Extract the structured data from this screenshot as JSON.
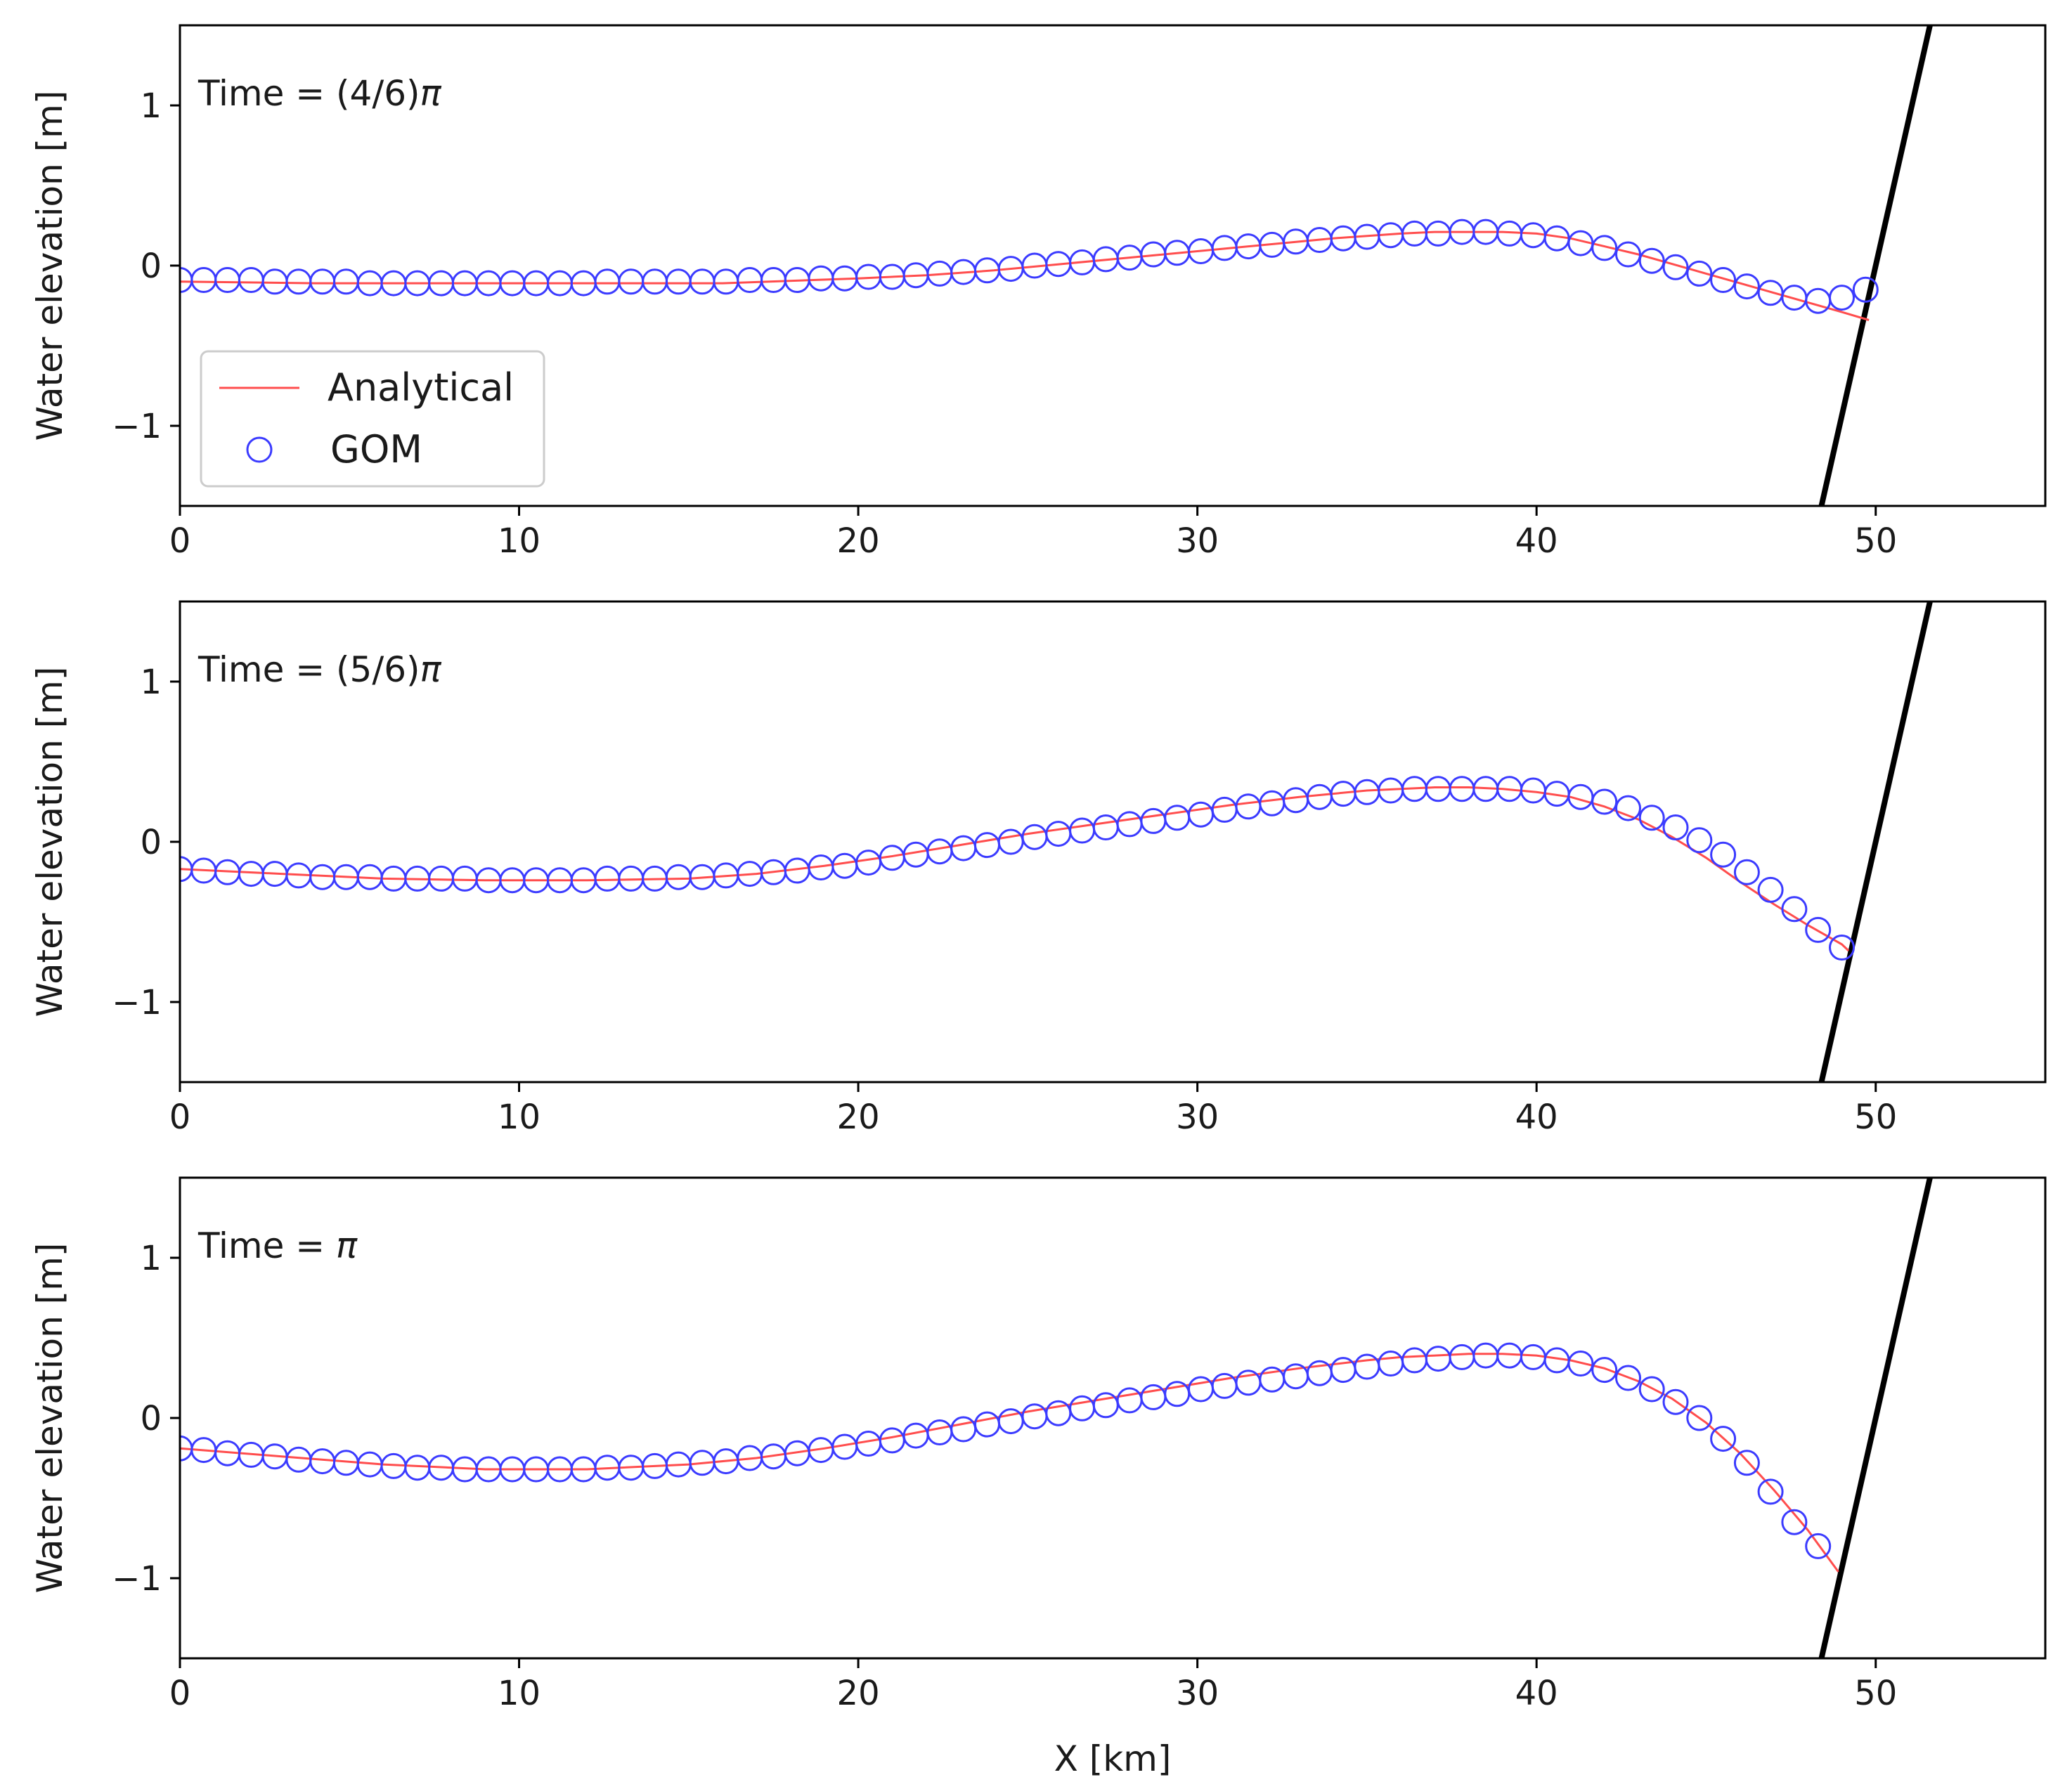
{
  "colors": {
    "analytical": "#ff4d4d",
    "gom": "#3b3bff",
    "bathymetry": "#000000",
    "axes": "#000000",
    "background": "#ffffff"
  },
  "legend": {
    "position": "lower-left of top panel",
    "entries": [
      {
        "label": "Analytical",
        "marker": "line"
      },
      {
        "label": "GOM",
        "marker": "circle"
      }
    ]
  },
  "chart_data": [
    {
      "type": "line+scatter",
      "annotation": "Time = (4/6)π",
      "annotation_prefix": "Time = (4/6)",
      "annotation_symbol": "π",
      "xlabel": "",
      "ylabel": "Water elevation [m]",
      "xlim": [
        0,
        55
      ],
      "ylim": [
        -1.5,
        1.5
      ],
      "xticks": [
        0,
        10,
        20,
        30,
        40,
        50
      ],
      "xtick_labels": [
        "0",
        "10",
        "20",
        "30",
        "40",
        "50"
      ],
      "yticks": [
        1,
        0,
        -1
      ],
      "ytick_labels": [
        "1",
        "0",
        "−1"
      ],
      "shoreline": [
        [
          48.4,
          -1.5
        ],
        [
          51.6,
          1.5
        ]
      ],
      "series": [
        {
          "name": "Analytical",
          "x": [
            0,
            4,
            8,
            12,
            16,
            20,
            22,
            24,
            26,
            28,
            30,
            32,
            34,
            36,
            37,
            38,
            39,
            40,
            41,
            42,
            43,
            44,
            45,
            46,
            47,
            48,
            49,
            49.8
          ],
          "y": [
            -0.1,
            -0.11,
            -0.11,
            -0.11,
            -0.11,
            -0.08,
            -0.06,
            -0.03,
            0.01,
            0.05,
            0.09,
            0.13,
            0.17,
            0.2,
            0.21,
            0.21,
            0.21,
            0.2,
            0.17,
            0.12,
            0.07,
            0.01,
            -0.05,
            -0.11,
            -0.17,
            -0.23,
            -0.29,
            -0.34
          ]
        },
        {
          "name": "GOM",
          "x": [
            0,
            0.7,
            1.4,
            2.1,
            2.8,
            3.5,
            4.2,
            4.9,
            5.6,
            6.3,
            7,
            7.7,
            8.4,
            9.1,
            9.8,
            10.5,
            11.2,
            11.9,
            12.6,
            13.3,
            14,
            14.7,
            15.4,
            16.1,
            16.8,
            17.5,
            18.2,
            18.9,
            19.6,
            20.3,
            21,
            21.7,
            22.4,
            23.1,
            23.8,
            24.5,
            25.2,
            25.9,
            26.6,
            27.3,
            28,
            28.7,
            29.4,
            30.1,
            30.8,
            31.5,
            32.2,
            32.9,
            33.6,
            34.3,
            35,
            35.7,
            36.4,
            37.1,
            37.8,
            38.5,
            39.2,
            39.9,
            40.6,
            41.3,
            42,
            42.7,
            43.4,
            44.1,
            44.8,
            45.5,
            46.2,
            46.9,
            47.6,
            48.3,
            49,
            49.7
          ],
          "y": [
            -0.09,
            -0.09,
            -0.09,
            -0.09,
            -0.1,
            -0.1,
            -0.1,
            -0.1,
            -0.11,
            -0.11,
            -0.11,
            -0.11,
            -0.11,
            -0.11,
            -0.11,
            -0.11,
            -0.11,
            -0.11,
            -0.1,
            -0.1,
            -0.1,
            -0.1,
            -0.1,
            -0.1,
            -0.09,
            -0.09,
            -0.09,
            -0.08,
            -0.08,
            -0.07,
            -0.07,
            -0.06,
            -0.05,
            -0.04,
            -0.03,
            -0.02,
            0.0,
            0.01,
            0.02,
            0.04,
            0.05,
            0.07,
            0.08,
            0.09,
            0.11,
            0.12,
            0.13,
            0.15,
            0.16,
            0.17,
            0.18,
            0.19,
            0.2,
            0.2,
            0.21,
            0.21,
            0.2,
            0.19,
            0.17,
            0.14,
            0.11,
            0.07,
            0.03,
            -0.01,
            -0.05,
            -0.09,
            -0.13,
            -0.17,
            -0.2,
            -0.22,
            -0.2,
            -0.15
          ]
        }
      ]
    },
    {
      "type": "line+scatter",
      "annotation": "Time = (5/6)π",
      "annotation_prefix": "Time = (5/6)",
      "annotation_symbol": "π",
      "xlabel": "",
      "ylabel": "Water elevation [m]",
      "xlim": [
        0,
        55
      ],
      "ylim": [
        -1.5,
        1.5
      ],
      "xticks": [
        0,
        10,
        20,
        30,
        40,
        50
      ],
      "xtick_labels": [
        "0",
        "10",
        "20",
        "30",
        "40",
        "50"
      ],
      "yticks": [
        1,
        0,
        -1
      ],
      "ytick_labels": [
        "1",
        "0",
        "−1"
      ],
      "shoreline": [
        [
          48.4,
          -1.5
        ],
        [
          51.6,
          1.5
        ]
      ],
      "series": [
        {
          "name": "Analytical",
          "x": [
            0,
            3,
            6,
            9,
            12,
            15,
            17,
            19,
            21,
            23,
            25,
            27,
            29,
            31,
            33,
            35,
            36,
            37,
            38,
            39,
            40,
            41,
            42,
            43,
            44,
            45,
            46,
            47,
            48,
            49,
            49.2
          ],
          "y": [
            -0.17,
            -0.2,
            -0.23,
            -0.24,
            -0.24,
            -0.23,
            -0.2,
            -0.15,
            -0.09,
            -0.02,
            0.05,
            0.11,
            0.17,
            0.23,
            0.28,
            0.32,
            0.33,
            0.34,
            0.34,
            0.33,
            0.31,
            0.28,
            0.22,
            0.14,
            0.03,
            -0.1,
            -0.25,
            -0.39,
            -0.52,
            -0.64,
            -0.68
          ]
        },
        {
          "name": "GOM",
          "x": [
            0,
            0.7,
            1.4,
            2.1,
            2.8,
            3.5,
            4.2,
            4.9,
            5.6,
            6.3,
            7,
            7.7,
            8.4,
            9.1,
            9.8,
            10.5,
            11.2,
            11.9,
            12.6,
            13.3,
            14,
            14.7,
            15.4,
            16.1,
            16.8,
            17.5,
            18.2,
            18.9,
            19.6,
            20.3,
            21,
            21.7,
            22.4,
            23.1,
            23.8,
            24.5,
            25.2,
            25.9,
            26.6,
            27.3,
            28,
            28.7,
            29.4,
            30.1,
            30.8,
            31.5,
            32.2,
            32.9,
            33.6,
            34.3,
            35,
            35.7,
            36.4,
            37.1,
            37.8,
            38.5,
            39.2,
            39.9,
            40.6,
            41.3,
            42,
            42.7,
            43.4,
            44.1,
            44.8,
            45.5,
            46.2,
            46.9,
            47.6,
            48.3,
            49
          ],
          "y": [
            -0.17,
            -0.18,
            -0.19,
            -0.2,
            -0.2,
            -0.21,
            -0.22,
            -0.22,
            -0.22,
            -0.23,
            -0.23,
            -0.23,
            -0.23,
            -0.24,
            -0.24,
            -0.24,
            -0.24,
            -0.24,
            -0.23,
            -0.23,
            -0.23,
            -0.22,
            -0.22,
            -0.21,
            -0.2,
            -0.19,
            -0.18,
            -0.16,
            -0.15,
            -0.13,
            -0.1,
            -0.08,
            -0.06,
            -0.04,
            -0.02,
            0.0,
            0.03,
            0.05,
            0.07,
            0.09,
            0.11,
            0.13,
            0.15,
            0.17,
            0.2,
            0.22,
            0.24,
            0.26,
            0.28,
            0.3,
            0.31,
            0.32,
            0.33,
            0.33,
            0.33,
            0.33,
            0.33,
            0.32,
            0.3,
            0.28,
            0.25,
            0.21,
            0.15,
            0.09,
            0.01,
            -0.08,
            -0.19,
            -0.3,
            -0.42,
            -0.55,
            -0.66
          ]
        }
      ]
    },
    {
      "type": "line+scatter",
      "annotation": "Time = π",
      "annotation_prefix": "Time = ",
      "annotation_symbol": "π",
      "xlabel": "X [km]",
      "ylabel": "Water elevation [m]",
      "xlim": [
        0,
        55
      ],
      "ylim": [
        -1.5,
        1.5
      ],
      "xticks": [
        0,
        10,
        20,
        30,
        40,
        50
      ],
      "xtick_labels": [
        "0",
        "10",
        "20",
        "30",
        "40",
        "50"
      ],
      "yticks": [
        1,
        0,
        -1
      ],
      "ytick_labels": [
        "1",
        "0",
        "−1"
      ],
      "shoreline": [
        [
          48.4,
          -1.5
        ],
        [
          51.6,
          1.5
        ]
      ],
      "series": [
        {
          "name": "Analytical",
          "x": [
            0,
            3,
            6,
            9,
            12,
            15,
            17,
            19,
            21,
            23,
            25,
            27,
            29,
            31,
            33,
            35,
            36,
            37,
            38,
            39,
            40,
            41,
            42,
            43,
            44,
            45,
            46,
            47,
            48,
            48.9
          ],
          "y": [
            -0.19,
            -0.24,
            -0.29,
            -0.32,
            -0.32,
            -0.29,
            -0.25,
            -0.19,
            -0.12,
            -0.04,
            0.04,
            0.11,
            0.18,
            0.25,
            0.31,
            0.36,
            0.38,
            0.39,
            0.4,
            0.4,
            0.39,
            0.36,
            0.31,
            0.23,
            0.12,
            -0.03,
            -0.22,
            -0.45,
            -0.7,
            -0.96
          ]
        },
        {
          "name": "GOM",
          "x": [
            0,
            0.7,
            1.4,
            2.1,
            2.8,
            3.5,
            4.2,
            4.9,
            5.6,
            6.3,
            7,
            7.7,
            8.4,
            9.1,
            9.8,
            10.5,
            11.2,
            11.9,
            12.6,
            13.3,
            14,
            14.7,
            15.4,
            16.1,
            16.8,
            17.5,
            18.2,
            18.9,
            19.6,
            20.3,
            21,
            21.7,
            22.4,
            23.1,
            23.8,
            24.5,
            25.2,
            25.9,
            26.6,
            27.3,
            28,
            28.7,
            29.4,
            30.1,
            30.8,
            31.5,
            32.2,
            32.9,
            33.6,
            34.3,
            35,
            35.7,
            36.4,
            37.1,
            37.8,
            38.5,
            39.2,
            39.9,
            40.6,
            41.3,
            42,
            42.7,
            43.4,
            44.1,
            44.8,
            45.5,
            46.2,
            46.9,
            47.6,
            48.3
          ],
          "y": [
            -0.19,
            -0.2,
            -0.22,
            -0.23,
            -0.24,
            -0.26,
            -0.27,
            -0.28,
            -0.29,
            -0.3,
            -0.31,
            -0.31,
            -0.32,
            -0.32,
            -0.32,
            -0.32,
            -0.32,
            -0.32,
            -0.31,
            -0.31,
            -0.3,
            -0.29,
            -0.28,
            -0.27,
            -0.25,
            -0.24,
            -0.22,
            -0.2,
            -0.18,
            -0.16,
            -0.14,
            -0.11,
            -0.09,
            -0.07,
            -0.04,
            -0.02,
            0.01,
            0.03,
            0.06,
            0.08,
            0.11,
            0.13,
            0.15,
            0.18,
            0.2,
            0.22,
            0.24,
            0.26,
            0.28,
            0.3,
            0.32,
            0.34,
            0.36,
            0.37,
            0.38,
            0.39,
            0.39,
            0.38,
            0.36,
            0.34,
            0.3,
            0.25,
            0.18,
            0.1,
            0.0,
            -0.13,
            -0.28,
            -0.46,
            -0.65,
            -0.8
          ]
        }
      ]
    }
  ]
}
